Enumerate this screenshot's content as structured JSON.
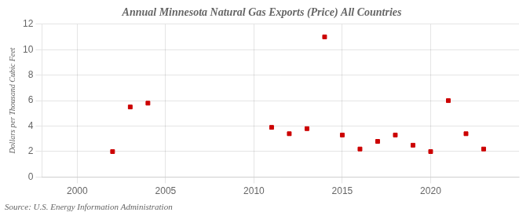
{
  "chart_data": {
    "type": "scatter",
    "title": "Annual Minnesota Natural Gas Exports (Price) All Countries",
    "ylabel": "Dollars per Thousand Cubic Feet",
    "annotation": "Source: U.S. Energy Information Administration",
    "x": [
      2002,
      2003,
      2004,
      2011,
      2012,
      2013,
      2014,
      2015,
      2016,
      2017,
      2018,
      2019,
      2020,
      2021,
      2022,
      2023
    ],
    "values": [
      2.0,
      5.5,
      5.8,
      3.9,
      3.4,
      3.8,
      11.0,
      3.3,
      2.2,
      2.8,
      3.3,
      2.5,
      2.0,
      6.0,
      3.4,
      2.2
    ],
    "color": "#cc0000",
    "marker": "square",
    "xlim": [
      1998,
      2025
    ],
    "ylim": [
      0,
      12
    ],
    "xticks": [
      2000,
      2005,
      2010,
      2015,
      2020
    ],
    "yticks": [
      0,
      2,
      4,
      6,
      8,
      10,
      12
    ],
    "grid": true
  }
}
